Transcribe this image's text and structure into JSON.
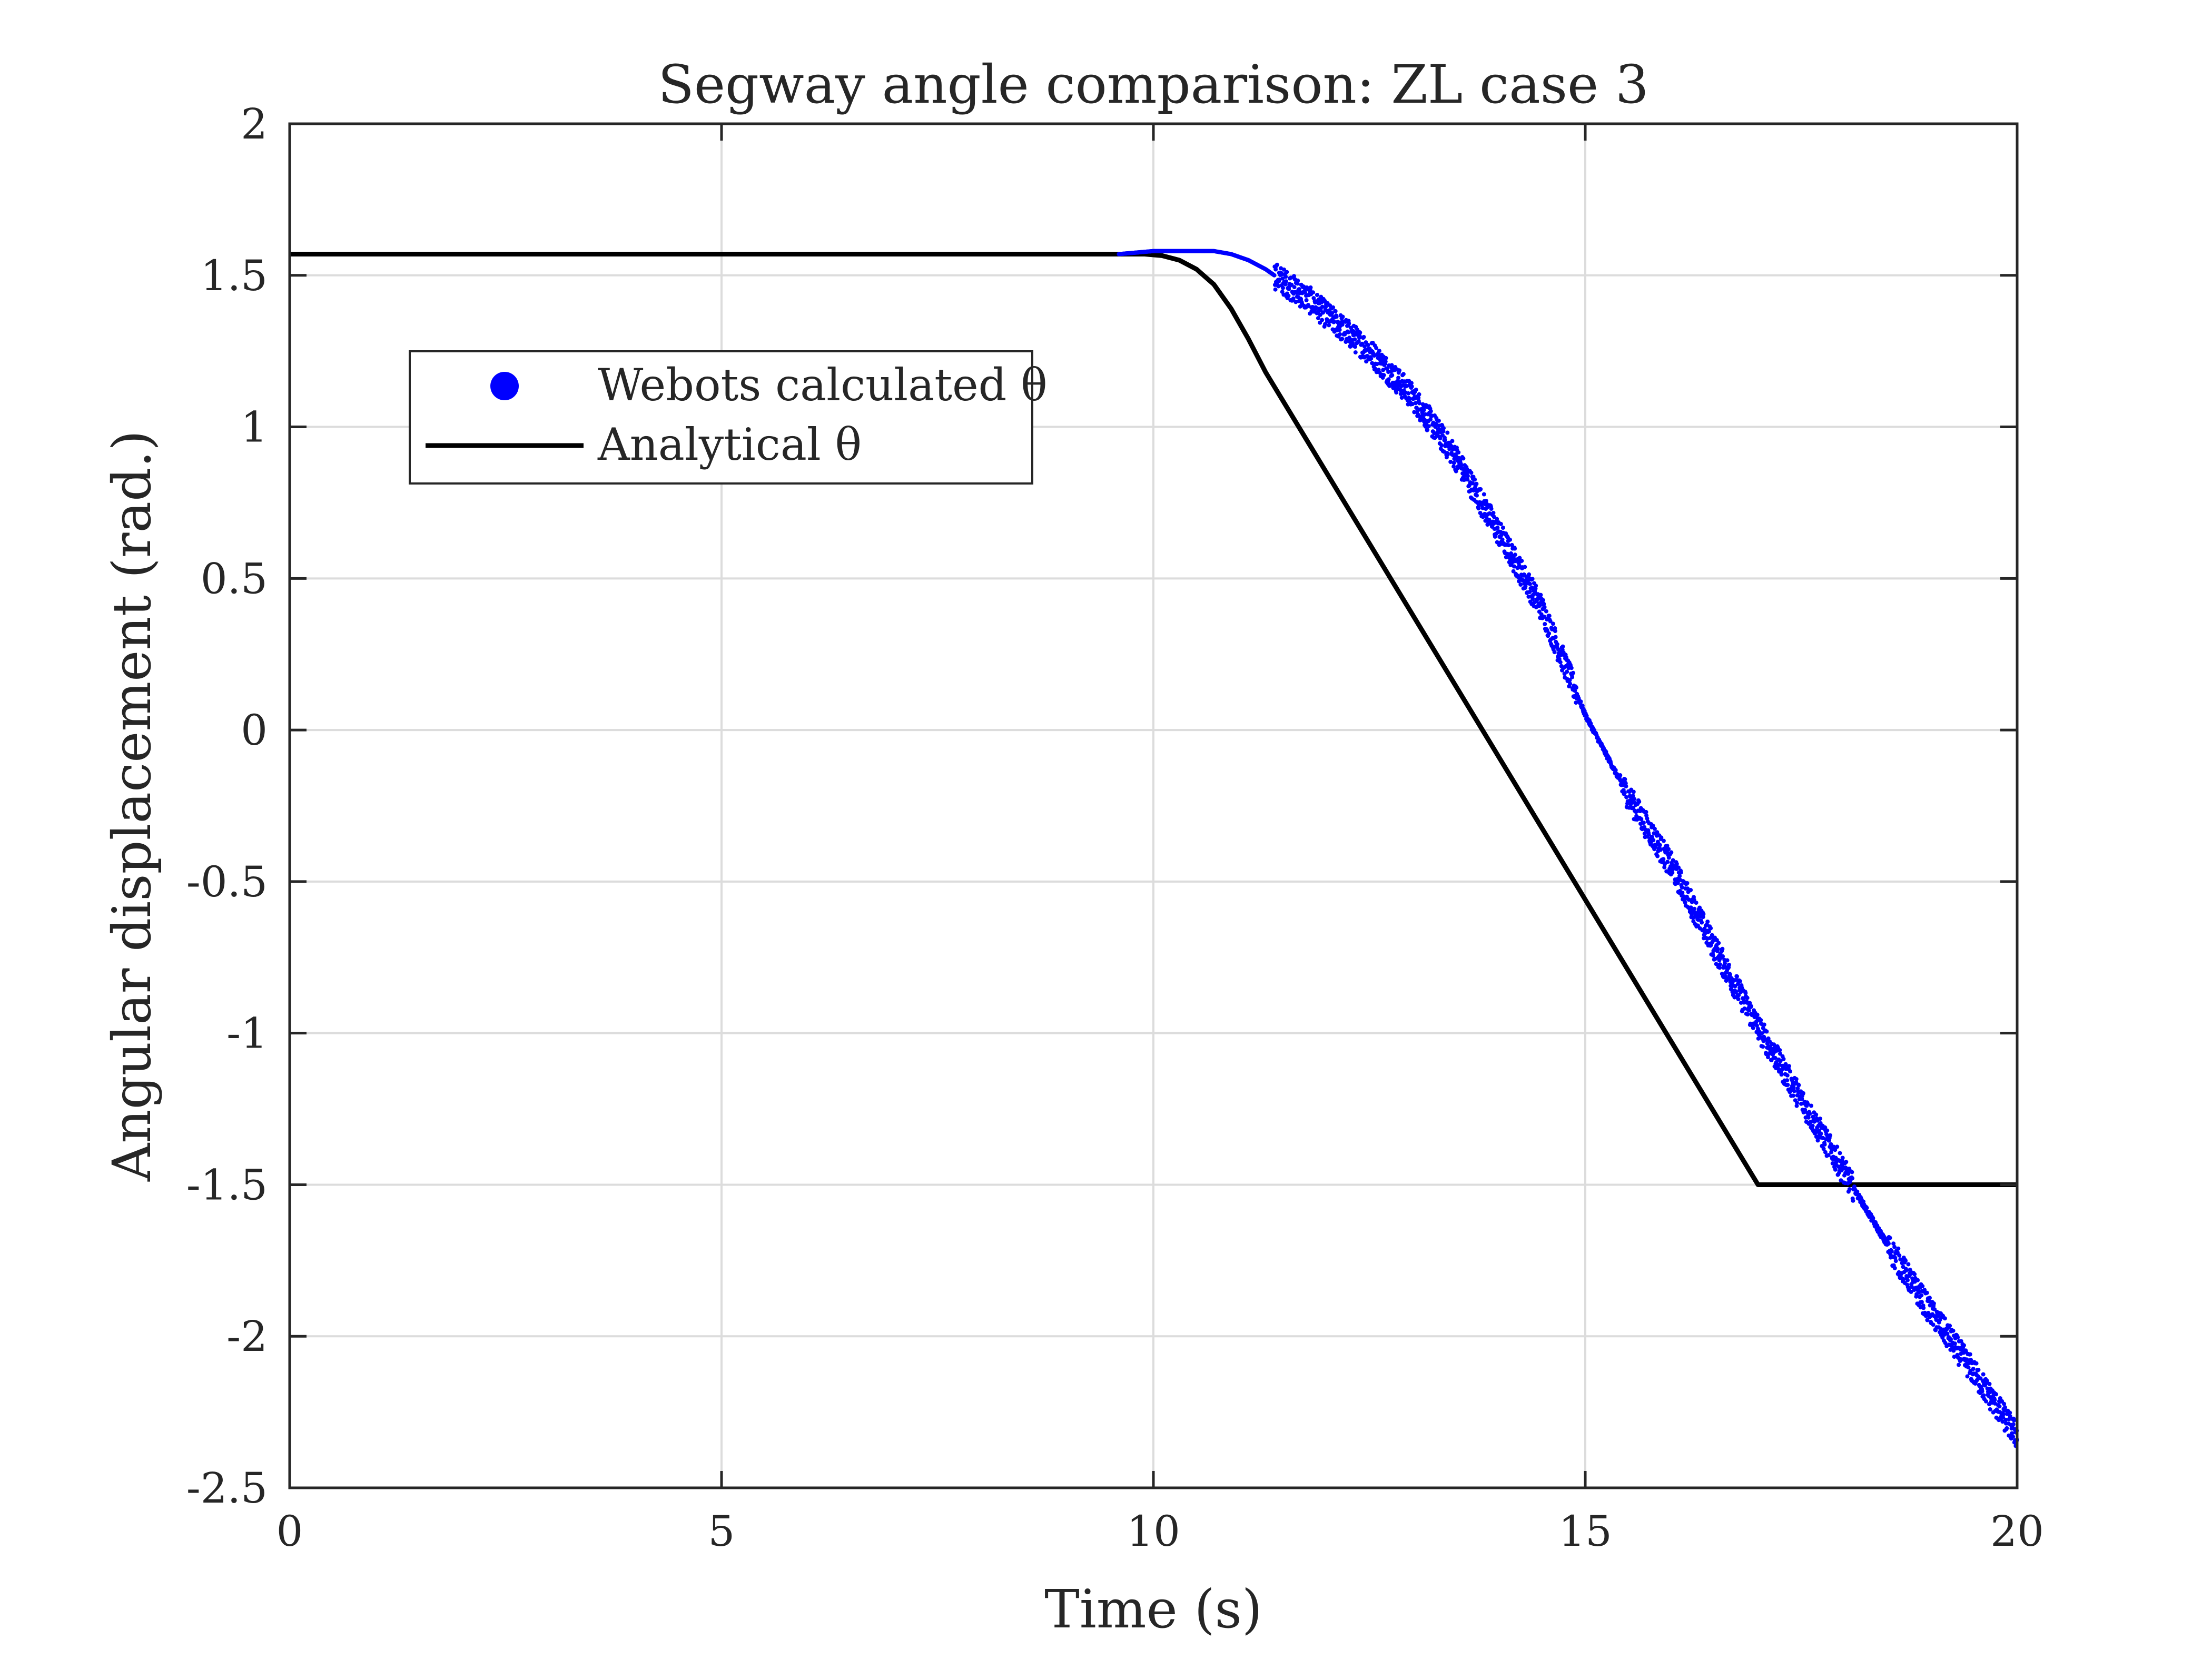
{
  "chart_data": {
    "type": "line",
    "title": "Segway angle comparison: ZL case 3",
    "xlabel": "Time (s)",
    "ylabel": "Angular displacement (rad.)",
    "xlim": [
      0,
      20
    ],
    "ylim": [
      -2.5,
      2
    ],
    "xticks": [
      0,
      5,
      10,
      15,
      20
    ],
    "xtick_labels": [
      "0",
      "5",
      "10",
      "15",
      "20"
    ],
    "yticks": [
      2,
      1.5,
      1,
      0.5,
      0,
      -0.5,
      -1,
      -1.5,
      -2,
      -2.5
    ],
    "ytick_labels": [
      "2",
      "1.5",
      "1",
      "0.5",
      "0",
      "-0.5",
      "-1",
      "-1.5",
      "-2",
      "-2.5"
    ],
    "grid": true,
    "legend_position": "upper-left",
    "series": [
      {
        "name": "Webots calculated θ",
        "style": "scatter",
        "color": "#0000ff",
        "x": [
          9.6,
          10.0,
          10.4,
          10.7,
          10.9,
          11.1,
          11.3,
          11.5,
          11.8,
          12.0,
          12.5,
          13.0,
          13.5,
          14.0,
          14.5,
          15.0,
          15.5,
          16.0,
          16.5,
          17.0,
          17.5,
          18.0,
          18.5,
          19.0,
          19.5,
          20.0
        ],
        "y": [
          1.57,
          1.58,
          1.58,
          1.58,
          1.57,
          1.55,
          1.52,
          1.48,
          1.42,
          1.37,
          1.25,
          1.1,
          0.9,
          0.65,
          0.4,
          0.05,
          -0.22,
          -0.45,
          -0.72,
          -0.98,
          -1.22,
          -1.46,
          -1.7,
          -1.92,
          -2.12,
          -2.33
        ]
      },
      {
        "name": "Analytical θ",
        "style": "line",
        "color": "#000000",
        "x": [
          0,
          9.9,
          10.1,
          10.3,
          10.5,
          10.7,
          10.9,
          11.1,
          11.3,
          17.0,
          20.0
        ],
        "y": [
          1.57,
          1.57,
          1.565,
          1.55,
          1.52,
          1.47,
          1.39,
          1.29,
          1.18,
          -1.5,
          -1.5
        ]
      }
    ]
  }
}
